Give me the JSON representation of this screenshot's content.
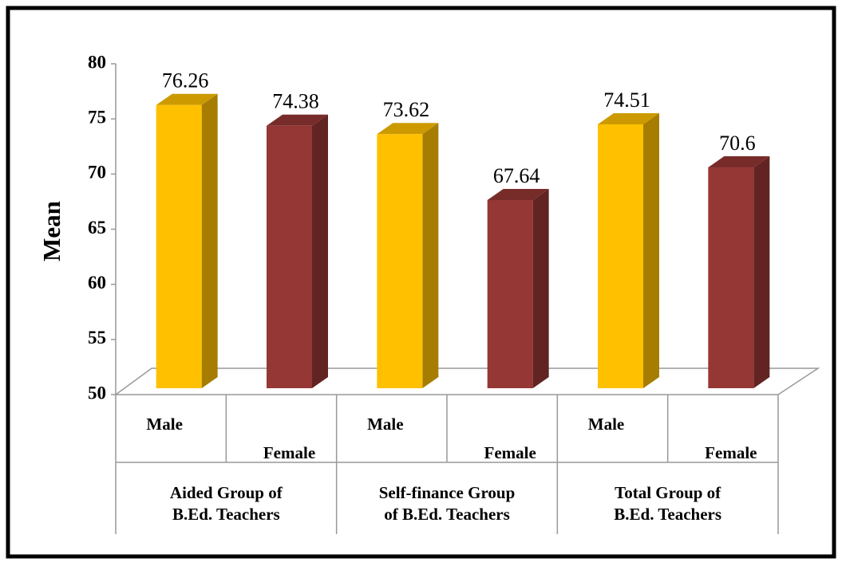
{
  "chart_data": {
    "type": "bar3d",
    "ylabel": "Mean",
    "categories": [
      "Male",
      "Female",
      "Male",
      "Female",
      "Male",
      "Female"
    ],
    "groups": [
      [
        "Aided Group of",
        "B.Ed. Teachers"
      ],
      [
        "Self-finance Group",
        "of B.Ed. Teachers"
      ],
      [
        "Total Group of",
        "B.Ed. Teachers"
      ]
    ],
    "values": [
      76.26,
      74.38,
      73.62,
      67.64,
      74.51,
      70.6
    ],
    "colors": [
      "#ffc000",
      "#953735",
      "#ffc000",
      "#953735",
      "#ffc000",
      "#953735"
    ],
    "ylim": [
      50,
      80
    ],
    "yticks": [
      50,
      55,
      60,
      65,
      70,
      75,
      80
    ]
  }
}
